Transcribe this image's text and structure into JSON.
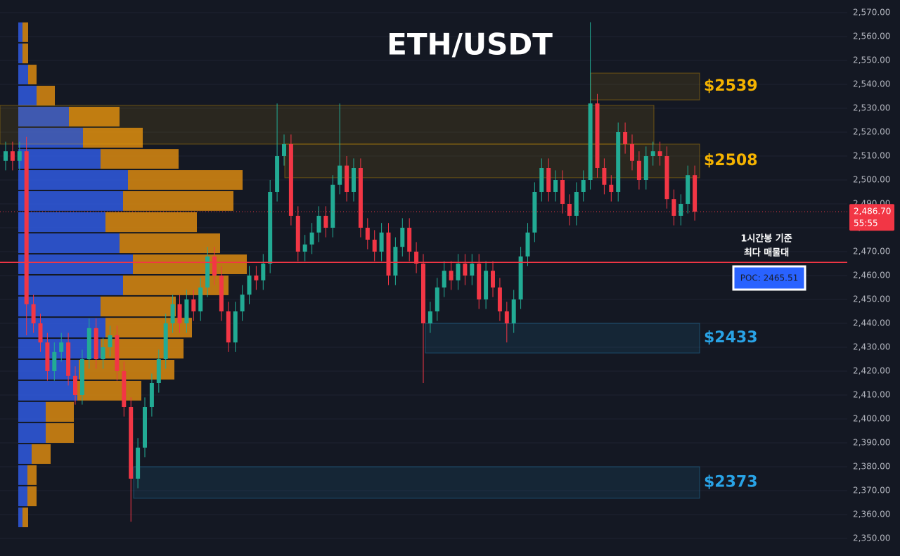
{
  "chart_data": {
    "type": "candlestick",
    "title": "ETH/USDT",
    "ylim": [
      2342.65,
      2575.29
    ],
    "yticks": [
      {
        "value": 2350,
        "label": "2,350.00"
      },
      {
        "value": 2360,
        "label": "2,360.00"
      },
      {
        "value": 2370,
        "label": "2,370.00"
      },
      {
        "value": 2380,
        "label": "2,380.00"
      },
      {
        "value": 2390,
        "label": "2,390.00"
      },
      {
        "value": 2400,
        "label": "2,400.00"
      },
      {
        "value": 2410,
        "label": "2,410.00"
      },
      {
        "value": 2420,
        "label": "2,420.00"
      },
      {
        "value": 2430,
        "label": "2,430.00"
      },
      {
        "value": 2440,
        "label": "2,440.00"
      },
      {
        "value": 2450,
        "label": "2,450.00"
      },
      {
        "value": 2460,
        "label": "2,460.00"
      },
      {
        "value": 2470,
        "label": "2,470.00"
      },
      {
        "value": 2480,
        "label": "2,480.00"
      },
      {
        "value": 2490,
        "label": "2,490.00"
      },
      {
        "value": 2500,
        "label": "2,500.00"
      },
      {
        "value": 2510,
        "label": "2,510.00"
      },
      {
        "value": 2520,
        "label": "2,520.00"
      },
      {
        "value": 2530,
        "label": "2,530.00"
      },
      {
        "value": 2540,
        "label": "2,540.00"
      },
      {
        "value": 2550,
        "label": "2,550.00"
      },
      {
        "value": 2560,
        "label": "2,560.00"
      },
      {
        "value": 2570,
        "label": "2,570.00"
      }
    ],
    "grid": true,
    "up_color": "#22ab94",
    "down_color": "#f23645",
    "open": [
      2508,
      2512,
      2508,
      2512,
      2448,
      2440,
      2432,
      2420,
      2428,
      2432,
      2418,
      2410,
      2425,
      2438,
      2425,
      2430,
      2435,
      2420,
      2405,
      2375,
      2388,
      2405,
      2415,
      2425,
      2440,
      2448,
      2440,
      2450,
      2445,
      2455,
      2468,
      2460,
      2445,
      2432,
      2445,
      2452,
      2460,
      2458,
      2465,
      2495,
      2510,
      2515,
      2485,
      2470,
      2473,
      2478,
      2485,
      2480,
      2498,
      2506,
      2495,
      2505,
      2480,
      2475,
      2470,
      2478,
      2460,
      2472,
      2480,
      2470,
      2465,
      2440,
      2445,
      2455,
      2462,
      2458,
      2465,
      2460,
      2465,
      2450,
      2462,
      2455,
      2445,
      2440,
      2450,
      2468,
      2478,
      2495,
      2505,
      2495,
      2500,
      2490,
      2485,
      2495,
      2500,
      2532,
      2505,
      2498,
      2495,
      2520,
      2515,
      2508,
      2500,
      2510,
      2512,
      2510,
      2492,
      2485,
      2490,
      2502
    ],
    "high": [
      2516,
      2516,
      2516,
      2518,
      2452,
      2444,
      2436,
      2432,
      2436,
      2436,
      2422,
      2429,
      2442,
      2442,
      2434,
      2439,
      2439,
      2424,
      2409,
      2392,
      2409,
      2419,
      2429,
      2444,
      2452,
      2452,
      2454,
      2454,
      2459,
      2472,
      2472,
      2464,
      2449,
      2449,
      2456,
      2464,
      2464,
      2469,
      2500,
      2532,
      2519,
      2519,
      2489,
      2477,
      2482,
      2489,
      2489,
      2502,
      2532,
      2510,
      2509,
      2509,
      2484,
      2479,
      2482,
      2482,
      2476,
      2484,
      2484,
      2474,
      2469,
      2449,
      2459,
      2466,
      2466,
      2469,
      2469,
      2469,
      2469,
      2466,
      2466,
      2459,
      2449,
      2454,
      2472,
      2482,
      2499,
      2509,
      2509,
      2504,
      2504,
      2494,
      2499,
      2504,
      2566,
      2536,
      2509,
      2502,
      2524,
      2524,
      2519,
      2512,
      2514,
      2516,
      2516,
      2514,
      2496,
      2494,
      2506,
      2506
    ],
    "low": [
      2504,
      2504,
      2504,
      2435,
      2436,
      2428,
      2416,
      2416,
      2424,
      2414,
      2406,
      2406,
      2421,
      2421,
      2421,
      2426,
      2416,
      2401,
      2357,
      2371,
      2384,
      2401,
      2411,
      2421,
      2436,
      2436,
      2436,
      2441,
      2441,
      2451,
      2456,
      2441,
      2428,
      2428,
      2441,
      2448,
      2454,
      2454,
      2461,
      2491,
      2506,
      2481,
      2466,
      2466,
      2469,
      2474,
      2476,
      2476,
      2494,
      2491,
      2491,
      2476,
      2471,
      2466,
      2466,
      2456,
      2456,
      2468,
      2466,
      2461,
      2415,
      2436,
      2441,
      2451,
      2454,
      2454,
      2456,
      2456,
      2446,
      2446,
      2451,
      2441,
      2432,
      2436,
      2446,
      2464,
      2474,
      2491,
      2491,
      2491,
      2486,
      2481,
      2481,
      2491,
      2496,
      2501,
      2494,
      2491,
      2491,
      2511,
      2504,
      2496,
      2496,
      2506,
      2506,
      2488,
      2481,
      2481,
      2486,
      2483
    ],
    "close": [
      2512,
      2508,
      2512,
      2448,
      2440,
      2432,
      2420,
      2428,
      2432,
      2418,
      2410,
      2425,
      2438,
      2425,
      2430,
      2435,
      2420,
      2405,
      2375,
      2388,
      2405,
      2415,
      2425,
      2440,
      2448,
      2440,
      2450,
      2445,
      2455,
      2468,
      2460,
      2445,
      2432,
      2445,
      2452,
      2460,
      2458,
      2465,
      2495,
      2510,
      2515,
      2485,
      2470,
      2473,
      2478,
      2485,
      2480,
      2498,
      2506,
      2495,
      2505,
      2480,
      2475,
      2470,
      2478,
      2460,
      2472,
      2480,
      2470,
      2465,
      2440,
      2445,
      2455,
      2462,
      2458,
      2465,
      2460,
      2465,
      2450,
      2462,
      2455,
      2445,
      2440,
      2450,
      2468,
      2478,
      2495,
      2505,
      2495,
      2500,
      2490,
      2485,
      2495,
      2500,
      2532,
      2505,
      2498,
      2495,
      2520,
      2515,
      2508,
      2500,
      2510,
      2512,
      2510,
      2492,
      2485,
      2490,
      2502,
      2486.7
    ],
    "volume_profile": {
      "bins": [
        2566.2,
        2557.4,
        2548.5,
        2539.7,
        2530.9,
        2522.1,
        2513.2,
        2504.4,
        2495.6,
        2486.8,
        2477.9,
        2469.1,
        2460.3,
        2451.5,
        2442.6,
        2433.8,
        2425.0,
        2416.2,
        2407.4,
        2398.5,
        2389.7,
        2380.9,
        2372.1,
        2363.2,
        2354.4
      ],
      "buy": [
        6,
        6,
        14,
        26,
        72,
        92,
        117,
        156,
        149,
        124,
        144,
        163,
        149,
        117,
        124,
        117,
        86,
        84,
        39,
        39,
        19,
        13,
        13,
        6
      ],
      "sell": [
        8,
        8,
        12,
        26,
        72,
        85,
        111,
        163,
        157,
        130,
        143,
        162,
        150,
        107,
        123,
        118,
        136,
        91,
        40,
        40,
        27,
        13,
        13,
        8
      ],
      "buy_color": "#2f5be0",
      "sell_color": "#d98a10"
    },
    "zones": [
      {
        "top": 2544.7,
        "bottom": 2533.5,
        "label": "$2539",
        "color": "#f5b300"
      },
      {
        "top": 2531.2,
        "bottom": 2515.0,
        "color": "#f5b300"
      },
      {
        "top": 2515.0,
        "bottom": 2500.9,
        "label": "$2508",
        "color": "#f5b300"
      },
      {
        "top": 2440.0,
        "bottom": 2427.6,
        "label": "$2433",
        "color": "#29a3e6"
      },
      {
        "top": 2380.0,
        "bottom": 2366.8,
        "label": "$2373",
        "color": "#29a3e6"
      }
    ],
    "poc": {
      "value": 2465.51,
      "label": "POC: 2465.51",
      "color": "#f23645"
    },
    "annotation": [
      "1시간봉 기준",
      "최다 매물대"
    ],
    "last_price": {
      "value": 2486.7,
      "label": "2,486.70",
      "countdown": "55:55"
    }
  }
}
